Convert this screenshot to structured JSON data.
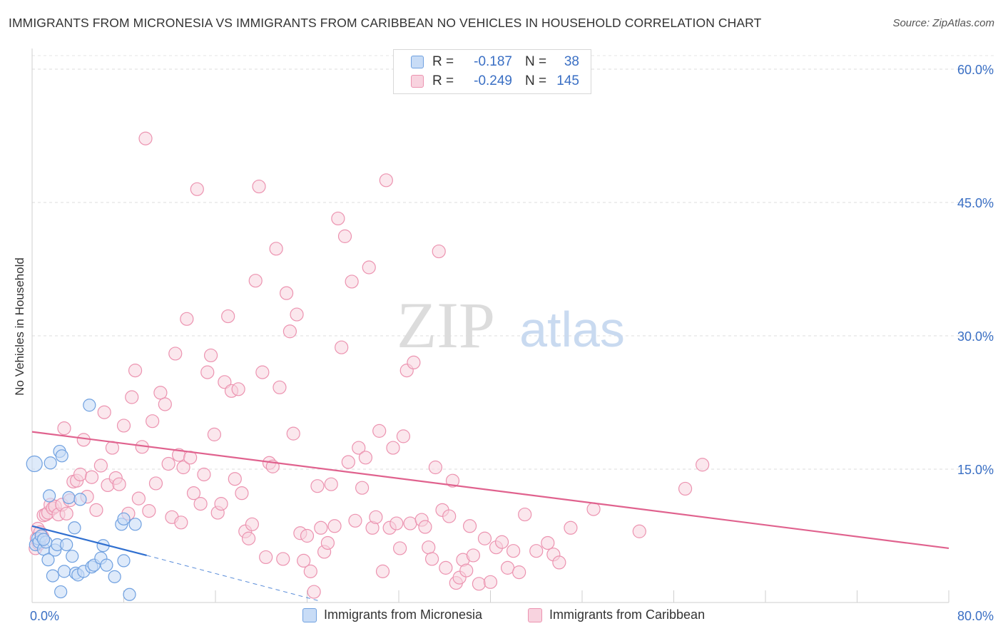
{
  "header": {
    "title": "IMMIGRANTS FROM MICRONESIA VS IMMIGRANTS FROM CARIBBEAN NO VEHICLES IN HOUSEHOLD CORRELATION CHART",
    "source": "Source: ZipAtlas.com"
  },
  "watermark": {
    "zip": "ZIP",
    "atlas": "atlas"
  },
  "legend": {
    "rows": [
      {
        "r_label": "R =",
        "r_value": "-0.187",
        "n_label": "N =",
        "n_value": "38",
        "color": "#6fa0e0"
      },
      {
        "r_label": "R =",
        "r_value": "-0.249",
        "n_label": "N =",
        "n_value": "145",
        "color": "#ec93b0"
      }
    ]
  },
  "bottom_legend": {
    "micronesia": "Immigrants from Micronesia",
    "caribbean": "Immigrants from Caribbean"
  },
  "chart_data": {
    "type": "scatter",
    "xlabel": "",
    "ylabel": "No Vehicles in Household",
    "xlim": [
      0,
      80
    ],
    "ylim": [
      0,
      60
    ],
    "x_tick_labels": [
      "0.0%",
      "80.0%"
    ],
    "y_tick_labels": [
      "15.0%",
      "30.0%",
      "45.0%",
      "60.0%"
    ],
    "y_ticks": [
      15,
      30,
      45,
      60
    ],
    "grid": "horizontal dashed",
    "legend_position": "top-center",
    "colors": {
      "micronesia": "#6fa0e0",
      "caribbean": "#ec93b0",
      "micronesia_line": "#2f6fd0",
      "caribbean_line": "#e0628e",
      "tick_text": "#3a6fc4"
    },
    "series": [
      {
        "name": "Immigrants from Micronesia",
        "r": -0.187,
        "n": 38,
        "trend": {
          "x": [
            0,
            10
          ],
          "y": [
            8.6,
            5.3
          ],
          "dashed_to": [
            25,
            0.2
          ]
        },
        "points": [
          [
            0.2,
            15.6
          ],
          [
            0.3,
            6.5
          ],
          [
            0.5,
            7.2
          ],
          [
            0.6,
            6.8
          ],
          [
            0.8,
            7.5
          ],
          [
            1.0,
            6.0
          ],
          [
            1.2,
            6.8
          ],
          [
            1.4,
            4.8
          ],
          [
            1.5,
            12.0
          ],
          [
            1.6,
            15.7
          ],
          [
            1.8,
            3.0
          ],
          [
            2.0,
            5.9
          ],
          [
            2.2,
            6.5
          ],
          [
            2.4,
            17.0
          ],
          [
            2.5,
            1.2
          ],
          [
            2.6,
            16.5
          ],
          [
            2.8,
            3.5
          ],
          [
            3.0,
            6.5
          ],
          [
            3.2,
            11.8
          ],
          [
            3.5,
            5.2
          ],
          [
            3.7,
            8.4
          ],
          [
            3.8,
            3.3
          ],
          [
            4.0,
            3.1
          ],
          [
            4.2,
            11.6
          ],
          [
            4.5,
            3.5
          ],
          [
            5.0,
            22.2
          ],
          [
            5.2,
            4.0
          ],
          [
            5.4,
            4.2
          ],
          [
            6.0,
            5.0
          ],
          [
            6.2,
            6.4
          ],
          [
            6.5,
            4.2
          ],
          [
            7.2,
            2.9
          ],
          [
            7.8,
            8.8
          ],
          [
            8.0,
            4.7
          ],
          [
            8.0,
            9.4
          ],
          [
            8.5,
            0.9
          ],
          [
            9.0,
            8.8
          ],
          [
            1.0,
            7.1
          ]
        ]
      },
      {
        "name": "Immigrants from Caribbean",
        "r": -0.249,
        "n": 145,
        "trend": {
          "x": [
            0,
            80
          ],
          "y": [
            19.2,
            6.1
          ]
        },
        "points": [
          [
            0.3,
            6.1
          ],
          [
            0.4,
            7.2
          ],
          [
            0.5,
            8.3
          ],
          [
            0.6,
            6.6
          ],
          [
            0.7,
            7.9
          ],
          [
            0.9,
            7.4
          ],
          [
            1.0,
            9.8
          ],
          [
            1.2,
            9.9
          ],
          [
            1.4,
            10.1
          ],
          [
            1.6,
            11.0
          ],
          [
            1.8,
            10.6
          ],
          [
            2.0,
            10.8
          ],
          [
            2.3,
            9.9
          ],
          [
            2.6,
            11.0
          ],
          [
            2.8,
            19.6
          ],
          [
            3.0,
            10.0
          ],
          [
            3.3,
            11.5
          ],
          [
            3.6,
            13.6
          ],
          [
            3.9,
            13.7
          ],
          [
            4.2,
            14.4
          ],
          [
            4.5,
            18.3
          ],
          [
            4.8,
            11.9
          ],
          [
            5.2,
            14.1
          ],
          [
            5.6,
            10.4
          ],
          [
            6.0,
            15.4
          ],
          [
            6.3,
            21.4
          ],
          [
            6.6,
            13.2
          ],
          [
            7.0,
            17.4
          ],
          [
            7.3,
            14.0
          ],
          [
            7.6,
            13.3
          ],
          [
            8.0,
            19.9
          ],
          [
            8.4,
            10.0
          ],
          [
            8.7,
            23.1
          ],
          [
            9.0,
            26.1
          ],
          [
            9.3,
            11.7
          ],
          [
            9.6,
            17.5
          ],
          [
            9.9,
            52.2
          ],
          [
            10.2,
            10.3
          ],
          [
            10.5,
            20.4
          ],
          [
            10.8,
            13.4
          ],
          [
            11.2,
            23.6
          ],
          [
            11.6,
            22.3
          ],
          [
            11.9,
            15.6
          ],
          [
            12.2,
            9.6
          ],
          [
            12.5,
            28.0
          ],
          [
            12.8,
            16.6
          ],
          [
            13.2,
            15.2
          ],
          [
            13.5,
            31.9
          ],
          [
            13.8,
            16.3
          ],
          [
            14.1,
            12.3
          ],
          [
            14.4,
            46.5
          ],
          [
            14.7,
            11.1
          ],
          [
            15.0,
            14.4
          ],
          [
            15.3,
            25.9
          ],
          [
            15.6,
            27.8
          ],
          [
            15.9,
            18.9
          ],
          [
            16.2,
            10.1
          ],
          [
            16.5,
            11.1
          ],
          [
            16.8,
            24.8
          ],
          [
            17.1,
            32.2
          ],
          [
            17.4,
            23.8
          ],
          [
            17.7,
            13.9
          ],
          [
            18.0,
            24.0
          ],
          [
            18.3,
            12.3
          ],
          [
            18.6,
            8.0
          ],
          [
            18.9,
            7.2
          ],
          [
            19.2,
            8.8
          ],
          [
            19.5,
            36.2
          ],
          [
            19.8,
            46.8
          ],
          [
            20.1,
            25.9
          ],
          [
            20.4,
            5.1
          ],
          [
            20.7,
            15.7
          ],
          [
            21.0,
            15.3
          ],
          [
            21.3,
            39.8
          ],
          [
            21.6,
            24.2
          ],
          [
            21.9,
            4.9
          ],
          [
            22.2,
            34.8
          ],
          [
            22.5,
            30.5
          ],
          [
            22.8,
            19.0
          ],
          [
            23.1,
            32.4
          ],
          [
            23.4,
            7.8
          ],
          [
            23.7,
            4.7
          ],
          [
            24.0,
            7.5
          ],
          [
            24.3,
            3.5
          ],
          [
            24.6,
            1.2
          ],
          [
            24.9,
            13.1
          ],
          [
            25.2,
            8.4
          ],
          [
            25.5,
            5.7
          ],
          [
            25.8,
            6.7
          ],
          [
            26.1,
            13.3
          ],
          [
            26.4,
            8.6
          ],
          [
            26.7,
            43.2
          ],
          [
            27.0,
            28.7
          ],
          [
            27.3,
            41.2
          ],
          [
            27.6,
            15.8
          ],
          [
            27.9,
            36.1
          ],
          [
            28.2,
            9.2
          ],
          [
            28.5,
            17.4
          ],
          [
            28.8,
            12.9
          ],
          [
            29.1,
            16.3
          ],
          [
            29.4,
            37.7
          ],
          [
            29.7,
            8.4
          ],
          [
            30.0,
            9.6
          ],
          [
            30.3,
            19.3
          ],
          [
            30.6,
            3.5
          ],
          [
            30.9,
            47.5
          ],
          [
            31.2,
            8.4
          ],
          [
            31.5,
            17.4
          ],
          [
            31.8,
            8.9
          ],
          [
            32.1,
            6.1
          ],
          [
            32.4,
            18.7
          ],
          [
            32.7,
            26.1
          ],
          [
            33.0,
            8.9
          ],
          [
            33.3,
            27.0
          ],
          [
            34.0,
            9.3
          ],
          [
            34.3,
            8.5
          ],
          [
            34.6,
            6.2
          ],
          [
            34.9,
            4.9
          ],
          [
            35.2,
            15.2
          ],
          [
            35.5,
            39.5
          ],
          [
            35.8,
            10.4
          ],
          [
            36.1,
            3.9
          ],
          [
            36.4,
            9.7
          ],
          [
            36.7,
            13.7
          ],
          [
            37.0,
            2.2
          ],
          [
            37.3,
            2.8
          ],
          [
            37.6,
            4.8
          ],
          [
            37.9,
            3.6
          ],
          [
            38.2,
            8.6
          ],
          [
            38.5,
            5.3
          ],
          [
            39.0,
            2.1
          ],
          [
            39.5,
            7.2
          ],
          [
            40.0,
            2.3
          ],
          [
            40.5,
            6.2
          ],
          [
            41.0,
            6.8
          ],
          [
            41.5,
            3.9
          ],
          [
            42.0,
            5.8
          ],
          [
            42.5,
            3.4
          ],
          [
            43.0,
            9.9
          ],
          [
            44.0,
            5.8
          ],
          [
            45.0,
            6.7
          ],
          [
            45.5,
            5.4
          ],
          [
            46.0,
            4.5
          ],
          [
            47.0,
            8.4
          ],
          [
            49.0,
            10.5
          ],
          [
            53.0,
            8.0
          ],
          [
            57.0,
            12.8
          ],
          [
            58.5,
            15.5
          ],
          [
            13.0,
            9.0
          ]
        ]
      }
    ]
  }
}
